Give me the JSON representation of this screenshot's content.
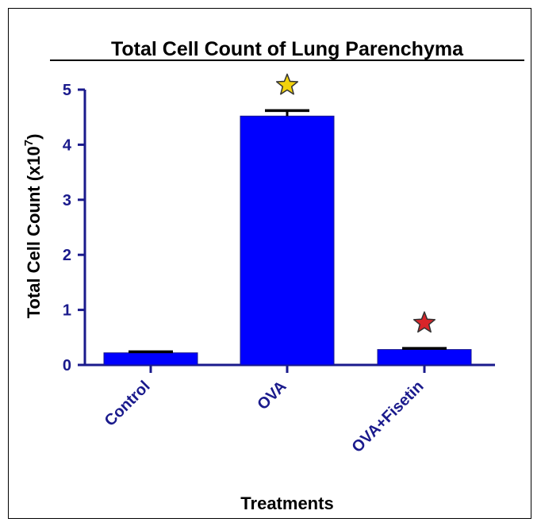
{
  "chart_data": {
    "type": "bar",
    "title": "Total Cell Count of Lung Parenchyma",
    "xlabel": "Treatments",
    "ylabel": "Total Cell  Count (x10",
    "ylabel_superscript": "7",
    "ylabel_suffix": ")",
    "categories": [
      "Control",
      "OVA",
      "OVA+Fisetin"
    ],
    "values": [
      0.22,
      4.52,
      0.28
    ],
    "error": [
      0.02,
      0.1,
      0.02
    ],
    "ylim": [
      0,
      5
    ],
    "yticks": [
      "0",
      "1",
      "2",
      "3",
      "4",
      "5"
    ],
    "markers": [
      {
        "category": "OVA",
        "symbol": "star",
        "color": "#f2d20c"
      },
      {
        "category": "OVA+Fisetin",
        "symbol": "star",
        "color": "#d9252a"
      }
    ],
    "bar_color": "#0000ff",
    "axis_color": "#1a1a8c"
  }
}
